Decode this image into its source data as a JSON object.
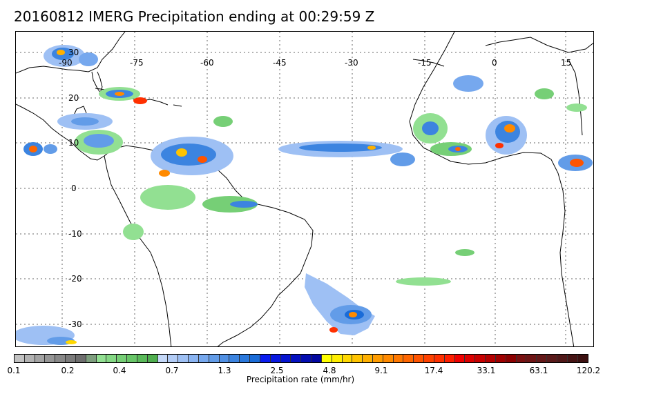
{
  "title": "20160812 IMERG Precipitation ending at 00:29:59 Z",
  "map": {
    "lon_ticks": [
      "-90",
      "-75",
      "-60",
      "-45",
      "-30",
      "-15",
      "0",
      "15"
    ],
    "lat_ticks": [
      "30",
      "20",
      "10",
      "0",
      "-10",
      "-20",
      "-30"
    ]
  },
  "colorbar": {
    "caption": "Precipitation rate (mm/hr)",
    "labels": [
      "0.1",
      "0.2",
      "0.4",
      "0.7",
      "1.3",
      "2.5",
      "4.8",
      "9.1",
      "17.4",
      "33.1",
      "63.1",
      "120.2"
    ],
    "colors": [
      "#c2c2c2",
      "#b2b2b2",
      "#a3a3a3",
      "#959595",
      "#888888",
      "#7b7b7b",
      "#6e6e6e",
      "#7e9e7e",
      "#92e092",
      "#84d884",
      "#76cf76",
      "#68c668",
      "#5aba5a",
      "#4fae4f",
      "#c4d8f8",
      "#b2ccf6",
      "#9ec0f4",
      "#8ab4f2",
      "#76a8ee",
      "#629ce8",
      "#5090e4",
      "#3c84e0",
      "#2a78dc",
      "#1a6cd8",
      "#0a1cf0",
      "#0818e0",
      "#0614d0",
      "#0410c0",
      "#030cb0",
      "#0208a0",
      "#ffff00",
      "#ffee00",
      "#ffd800",
      "#ffc400",
      "#ffb000",
      "#ff9c00",
      "#ff8a00",
      "#ff7800",
      "#ff6600",
      "#ff5400",
      "#ff4200",
      "#ff3000",
      "#ff1e00",
      "#f00000",
      "#dc0000",
      "#c80000",
      "#b40000",
      "#a00000",
      "#8c0000",
      "#7a1010",
      "#6e1414",
      "#641818",
      "#5a1a1a",
      "#501818",
      "#461414",
      "#3c1010"
    ]
  }
}
